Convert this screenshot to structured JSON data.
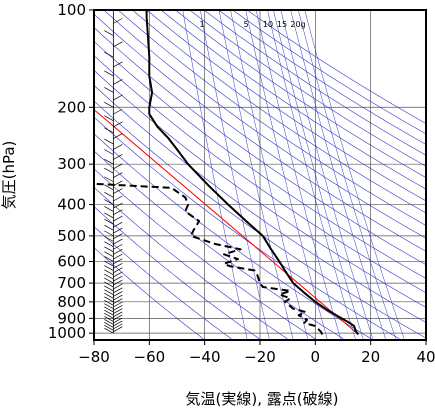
{
  "chart_data": {
    "type": "line",
    "title": "",
    "xlabel": "気温(実線), 露点(破線)",
    "ylabel": "気圧(hPa)",
    "xlim": [
      -80,
      40
    ],
    "ylim": [
      1050,
      100
    ],
    "y_scale": "log",
    "x_ticks": [
      -80,
      -60,
      -40,
      -20,
      0,
      20,
      40
    ],
    "x_tick_labels": [
      "−80",
      "−60",
      "−40",
      "−20",
      "0",
      "20",
      "40"
    ],
    "y_ticks": [
      100,
      200,
      300,
      400,
      500,
      600,
      700,
      800,
      900,
      1000
    ],
    "y_tick_labels": [
      "100",
      "200",
      "300",
      "400",
      "500",
      "600",
      "700",
      "800",
      "900",
      "1000"
    ],
    "mixing_ratio_labels": [
      "1",
      "5",
      "10",
      "15",
      "20g"
    ],
    "grid": true,
    "colors": {
      "temperature": "#000000",
      "dewpoint": "#000000",
      "reference_line": "#ff0000",
      "guide_lines": "#3333cc",
      "wind_barbs": "#000000"
    },
    "series": [
      {
        "style": "solid",
        "points": [
          {
            "p": 1010,
            "t": 15.5
          },
          {
            "p": 980,
            "t": 14.5
          },
          {
            "p": 950,
            "t": 14.0
          },
          {
            "p": 925,
            "t": 12.0
          },
          {
            "p": 900,
            "t": 9.5
          },
          {
            "p": 850,
            "t": 4.5
          },
          {
            "p": 800,
            "t": 0.0
          },
          {
            "p": 750,
            "t": -4.0
          },
          {
            "p": 700,
            "t": -8.0
          },
          {
            "p": 650,
            "t": -10.5
          },
          {
            "p": 600,
            "t": -13.0
          },
          {
            "p": 550,
            "t": -16.0
          },
          {
            "p": 500,
            "t": -19.0
          },
          {
            "p": 450,
            "t": -25.0
          },
          {
            "p": 400,
            "t": -31.5
          },
          {
            "p": 350,
            "t": -38.5
          },
          {
            "p": 300,
            "t": -46.0
          },
          {
            "p": 270,
            "t": -50.0
          },
          {
            "p": 250,
            "t": -53.0
          },
          {
            "p": 230,
            "t": -57.0
          },
          {
            "p": 210,
            "t": -60.0
          },
          {
            "p": 200,
            "t": -60.0
          },
          {
            "p": 180,
            "t": -59.0
          },
          {
            "p": 160,
            "t": -60.0
          },
          {
            "p": 140,
            "t": -60.0
          },
          {
            "p": 120,
            "t": -60.5
          },
          {
            "p": 105,
            "t": -61.0
          },
          {
            "p": 100,
            "t": -61.0
          }
        ]
      },
      {
        "style": "dashed",
        "points": [
          {
            "p": 1010,
            "t": 2.5
          },
          {
            "p": 990,
            "t": 2.0
          },
          {
            "p": 970,
            "t": 1.0
          },
          {
            "p": 950,
            "t": 0.0
          },
          {
            "p": 930,
            "t": -4.0
          },
          {
            "p": 910,
            "t": -3.0
          },
          {
            "p": 880,
            "t": -6.0
          },
          {
            "p": 860,
            "t": -3.5
          },
          {
            "p": 840,
            "t": -8.0
          },
          {
            "p": 800,
            "t": -11.0
          },
          {
            "p": 780,
            "t": -9.0
          },
          {
            "p": 760,
            "t": -13.0
          },
          {
            "p": 740,
            "t": -9.0
          },
          {
            "p": 720,
            "t": -19.0
          },
          {
            "p": 700,
            "t": -20.0
          },
          {
            "p": 660,
            "t": -21.0
          },
          {
            "p": 640,
            "t": -22.0
          },
          {
            "p": 620,
            "t": -31.0
          },
          {
            "p": 610,
            "t": -33.0
          },
          {
            "p": 590,
            "t": -28.0
          },
          {
            "p": 570,
            "t": -33.0
          },
          {
            "p": 550,
            "t": -27.0
          },
          {
            "p": 530,
            "t": -36.0
          },
          {
            "p": 500,
            "t": -45.0
          },
          {
            "p": 480,
            "t": -44.0
          },
          {
            "p": 450,
            "t": -42.0
          },
          {
            "p": 420,
            "t": -47.0
          },
          {
            "p": 400,
            "t": -46.0
          },
          {
            "p": 380,
            "t": -47.0
          },
          {
            "p": 355,
            "t": -52.0
          },
          {
            "p": 345,
            "t": -80.0
          }
        ]
      }
    ],
    "reference_line": [
      {
        "p": 1000,
        "t": 15
      },
      {
        "p": 200,
        "t": -81
      }
    ]
  }
}
